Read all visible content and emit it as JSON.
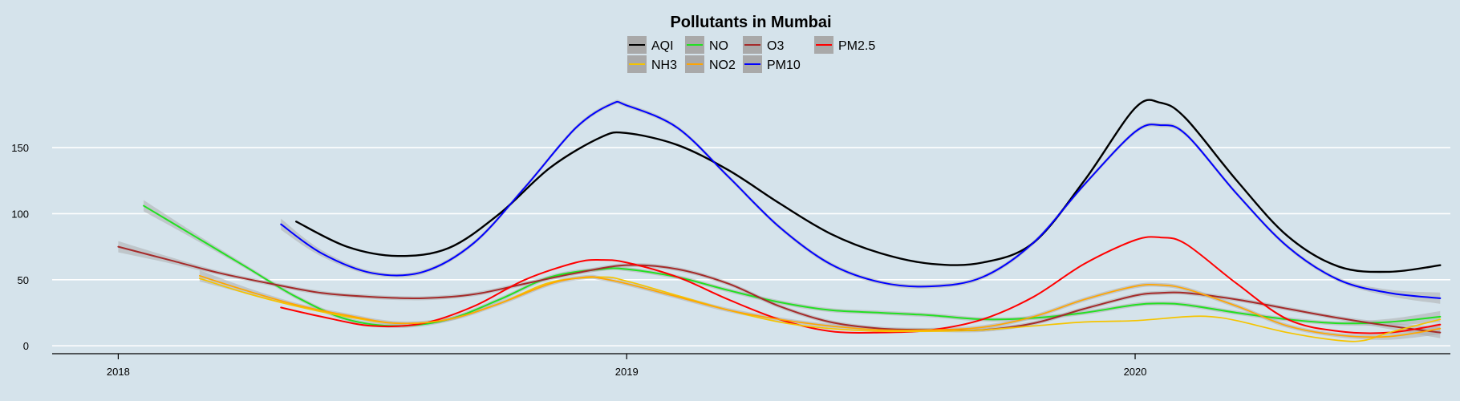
{
  "chart_data": {
    "type": "line",
    "title": "Pollutants in Mumbai",
    "xlabel": "",
    "ylabel": "",
    "grid": true,
    "legend_position": "top-center",
    "xlim": [
      2017.87,
      2020.62
    ],
    "ylim": [
      -6,
      195
    ],
    "x_ticks": [
      2018,
      2019,
      2020
    ],
    "x_tick_labels": [
      "2018",
      "2019",
      "2020"
    ],
    "y_ticks": [
      0,
      50,
      100,
      150
    ],
    "y_tick_labels": [
      "0",
      "50",
      "100",
      "150"
    ],
    "legend_order": [
      "AQI",
      "NO",
      "O3",
      "PM2.5",
      "NH3",
      "NO2",
      "PM10"
    ],
    "series": [
      {
        "name": "AQI",
        "color": "#000000",
        "band": false,
        "x": [
          2018.35,
          2018.45,
          2018.55,
          2018.65,
          2018.75,
          2018.85,
          2018.95,
          2019.0,
          2019.1,
          2019.2,
          2019.3,
          2019.4,
          2019.5,
          2019.6,
          2019.7,
          2019.8,
          2019.9,
          2020.0,
          2020.05,
          2020.1,
          2020.2,
          2020.3,
          2020.4,
          2020.5,
          2020.6
        ],
        "y": [
          94,
          75,
          68,
          74,
          100,
          135,
          158,
          161,
          152,
          133,
          108,
          85,
          70,
          62,
          63,
          78,
          125,
          180,
          184,
          172,
          125,
          83,
          60,
          56,
          61
        ]
      },
      {
        "name": "NO",
        "color": "#22e022",
        "band": true,
        "x": [
          2018.05,
          2018.15,
          2018.25,
          2018.35,
          2018.45,
          2018.55,
          2018.65,
          2018.75,
          2018.85,
          2018.95,
          2019.0,
          2019.1,
          2019.2,
          2019.3,
          2019.4,
          2019.5,
          2019.6,
          2019.7,
          2019.8,
          2019.9,
          2020.0,
          2020.05,
          2020.1,
          2020.2,
          2020.3,
          2020.4,
          2020.5,
          2020.6
        ],
        "y": [
          106,
          83,
          60,
          37,
          20,
          15,
          20,
          35,
          52,
          58,
          58,
          52,
          42,
          33,
          27,
          25,
          23,
          20,
          21,
          25,
          31,
          32,
          31,
          25,
          20,
          17,
          18,
          22
        ]
      },
      {
        "name": "O3",
        "color": "#a52a2a",
        "band": true,
        "x": [
          2018.0,
          2018.1,
          2018.2,
          2018.3,
          2018.4,
          2018.5,
          2018.6,
          2018.7,
          2018.8,
          2018.9,
          2019.0,
          2019.1,
          2019.2,
          2019.3,
          2019.4,
          2019.5,
          2019.6,
          2019.7,
          2019.8,
          2019.9,
          2020.0,
          2020.05,
          2020.1,
          2020.2,
          2020.3,
          2020.4,
          2020.5,
          2020.6
        ],
        "y": [
          75,
          65,
          55,
          47,
          40,
          37,
          36,
          39,
          47,
          55,
          61,
          58,
          47,
          30,
          18,
          13,
          12,
          12,
          17,
          28,
          38,
          40,
          40,
          35,
          28,
          21,
          15,
          10
        ]
      },
      {
        "name": "PM2.5",
        "color": "#ff0000",
        "band": false,
        "x": [
          2018.32,
          2018.4,
          2018.5,
          2018.6,
          2018.7,
          2018.8,
          2018.9,
          2018.95,
          2019.0,
          2019.1,
          2019.2,
          2019.3,
          2019.4,
          2019.5,
          2019.6,
          2019.7,
          2019.8,
          2019.9,
          2020.0,
          2020.05,
          2020.1,
          2020.2,
          2020.3,
          2020.4,
          2020.5,
          2020.6
        ],
        "y": [
          29,
          22,
          15,
          17,
          30,
          50,
          63,
          65,
          63,
          52,
          35,
          20,
          11,
          10,
          12,
          20,
          37,
          62,
          80,
          82,
          77,
          47,
          20,
          11,
          10,
          16
        ]
      },
      {
        "name": "NH3",
        "color": "#f5c400",
        "band": false,
        "x": [
          2018.16,
          2018.25,
          2018.35,
          2018.45,
          2018.55,
          2018.65,
          2018.75,
          2018.85,
          2018.95,
          2019.0,
          2019.1,
          2019.2,
          2019.3,
          2019.4,
          2019.5,
          2019.6,
          2019.7,
          2019.8,
          2019.9,
          2020.0,
          2020.1,
          2020.15,
          2020.2,
          2020.3,
          2020.4,
          2020.45,
          2020.5,
          2020.6
        ],
        "y": [
          51,
          40,
          30,
          22,
          17,
          20,
          32,
          48,
          52,
          49,
          38,
          27,
          18,
          13,
          11,
          11,
          12,
          15,
          18,
          19,
          22,
          22,
          19,
          10,
          4,
          4,
          10,
          20
        ]
      },
      {
        "name": "NO2",
        "color": "#ffa500",
        "band": true,
        "x": [
          2018.16,
          2018.25,
          2018.35,
          2018.45,
          2018.55,
          2018.65,
          2018.75,
          2018.85,
          2018.92,
          2018.95,
          2019.0,
          2019.1,
          2019.2,
          2019.3,
          2019.4,
          2019.5,
          2019.6,
          2019.7,
          2019.8,
          2019.9,
          2020.0,
          2020.05,
          2020.1,
          2020.2,
          2020.3,
          2020.4,
          2020.5,
          2020.6
        ],
        "y": [
          53,
          42,
          31,
          23,
          17,
          20,
          32,
          47,
          52,
          51,
          47,
          37,
          27,
          20,
          15,
          12,
          12,
          14,
          22,
          35,
          45,
          46,
          43,
          30,
          15,
          8,
          7,
          13
        ]
      },
      {
        "name": "PM10",
        "color": "#0000ff",
        "band": true,
        "x": [
          2018.32,
          2018.4,
          2018.5,
          2018.6,
          2018.7,
          2018.8,
          2018.9,
          2018.97,
          2019.0,
          2019.1,
          2019.2,
          2019.3,
          2019.4,
          2019.5,
          2019.6,
          2019.7,
          2019.8,
          2019.9,
          2020.0,
          2020.05,
          2020.1,
          2020.2,
          2020.3,
          2020.4,
          2020.5,
          2020.6
        ],
        "y": [
          92,
          70,
          55,
          56,
          78,
          120,
          165,
          183,
          182,
          165,
          128,
          90,
          62,
          48,
          45,
          52,
          78,
          122,
          162,
          167,
          160,
          115,
          75,
          50,
          40,
          36
        ]
      }
    ]
  }
}
